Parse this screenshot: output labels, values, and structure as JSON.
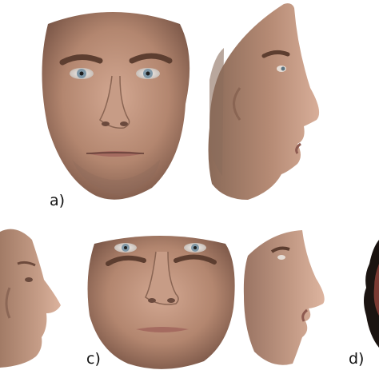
{
  "figure": {
    "panels": [
      {
        "id": "a",
        "label": "a)",
        "views": [
          "frontal-face",
          "right-profile-face"
        ]
      },
      {
        "id": "b",
        "label": "",
        "views": [
          "head-profile"
        ]
      },
      {
        "id": "c",
        "label": "c)",
        "views": [
          "frontal-face",
          "right-profile-face"
        ]
      },
      {
        "id": "d",
        "label": "d)",
        "views": [
          "head-partial"
        ]
      }
    ],
    "colors": {
      "skin": "#b58a74",
      "skin_light": "#d8ae99",
      "skin_dark": "#7d5847",
      "brow": "#5d3e30",
      "iris": "#7f97a6",
      "lips": "#a56b60",
      "background": "#ffffff"
    }
  }
}
